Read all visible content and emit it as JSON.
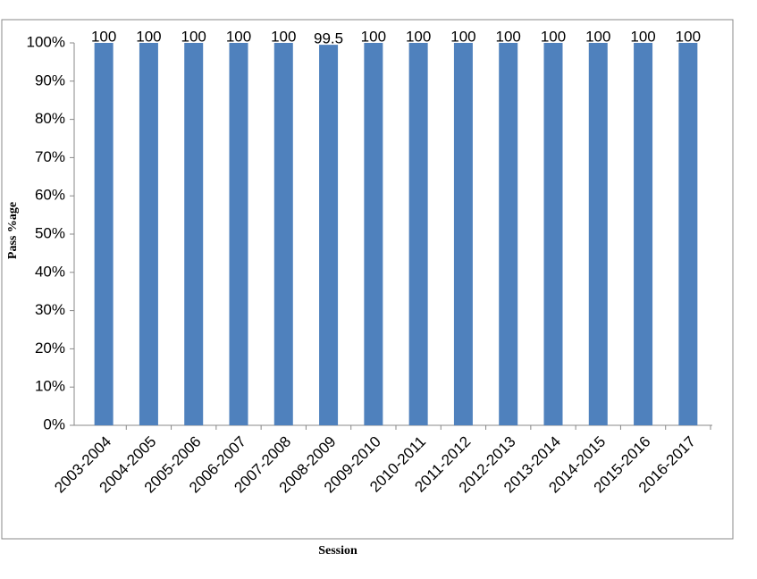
{
  "chart_data": {
    "type": "bar",
    "x_label": "Session",
    "y_label": "Pass %age",
    "categories": [
      "2003-2004",
      "2004-2005",
      "2005-2006",
      "2006-2007",
      "2007-2008",
      "2008-2009",
      "2009-2010",
      "2010-2011",
      "2011-2012",
      "2012-2013",
      "2013-2014",
      "2014-2015",
      "2015-2016",
      "2016-2017"
    ],
    "values": [
      100,
      100,
      100,
      100,
      100,
      99.5,
      100,
      100,
      100,
      100,
      100,
      100,
      100,
      100
    ],
    "color": "#4f81bd",
    "ylim": [
      0,
      100
    ],
    "yticks": [
      {
        "value": 0,
        "label": "0%"
      },
      {
        "value": 10,
        "label": "10%"
      },
      {
        "value": 20,
        "label": "20%"
      },
      {
        "value": 30,
        "label": "30%"
      },
      {
        "value": 40,
        "label": "40%"
      },
      {
        "value": 50,
        "label": "50%"
      },
      {
        "value": 60,
        "label": "60%"
      },
      {
        "value": 70,
        "label": "70%"
      },
      {
        "value": 80,
        "label": "80%"
      },
      {
        "value": 90,
        "label": "90%"
      },
      {
        "value": 100,
        "label": "100%"
      }
    ],
    "grid": false
  }
}
